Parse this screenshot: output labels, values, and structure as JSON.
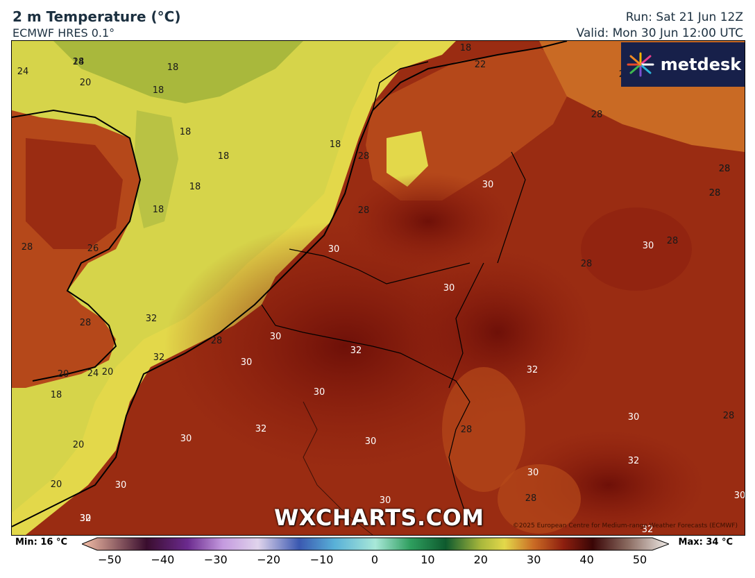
{
  "header": {
    "title": "2 m Temperature (°C)",
    "subtitle": "ECMWF HRES 0.1°",
    "run": "Run: Sat 21 Jun 12Z",
    "valid": "Valid: Mon 30 Jun 12:00 UTC"
  },
  "logo": {
    "text": "metdesk",
    "icon": "metdesk-logo-icon"
  },
  "watermark": "WXCHARTS.COM",
  "copyright": "©2025 European Centre for Medium-range Weather Forecasts (ECMWF)",
  "colorbar": {
    "min_label": "Min: 16 °C",
    "max_label": "Max: 34 °C",
    "ticks": [
      "−50",
      "−40",
      "−30",
      "−20",
      "−10",
      "0",
      "10",
      "20",
      "30",
      "40",
      "50"
    ]
  },
  "map_labels": [
    "18",
    "18",
    "18",
    "18",
    "18",
    "18",
    "18",
    "18",
    "18",
    "18",
    "24",
    "20",
    "22",
    "26",
    "28",
    "28",
    "28",
    "28",
    "28",
    "28",
    "28",
    "28",
    "28",
    "28",
    "28",
    "28",
    "28",
    "30",
    "30",
    "30",
    "30",
    "30",
    "30",
    "30",
    "30",
    "30",
    "30",
    "30",
    "30",
    "30",
    "30",
    "30",
    "32",
    "32",
    "32",
    "32",
    "32",
    "32",
    "32",
    "32",
    "24",
    "20",
    "20",
    "20",
    "20",
    "22",
    "28",
    "28",
    "24"
  ],
  "colors": {
    "sea_green": "#a9b83c",
    "sea_yellow": "#e3d84a",
    "land_warm": "#b5481a",
    "land_hot": "#8e1f0f",
    "land_hottest": "#6e1008",
    "brand_navy": "#17204a"
  }
}
